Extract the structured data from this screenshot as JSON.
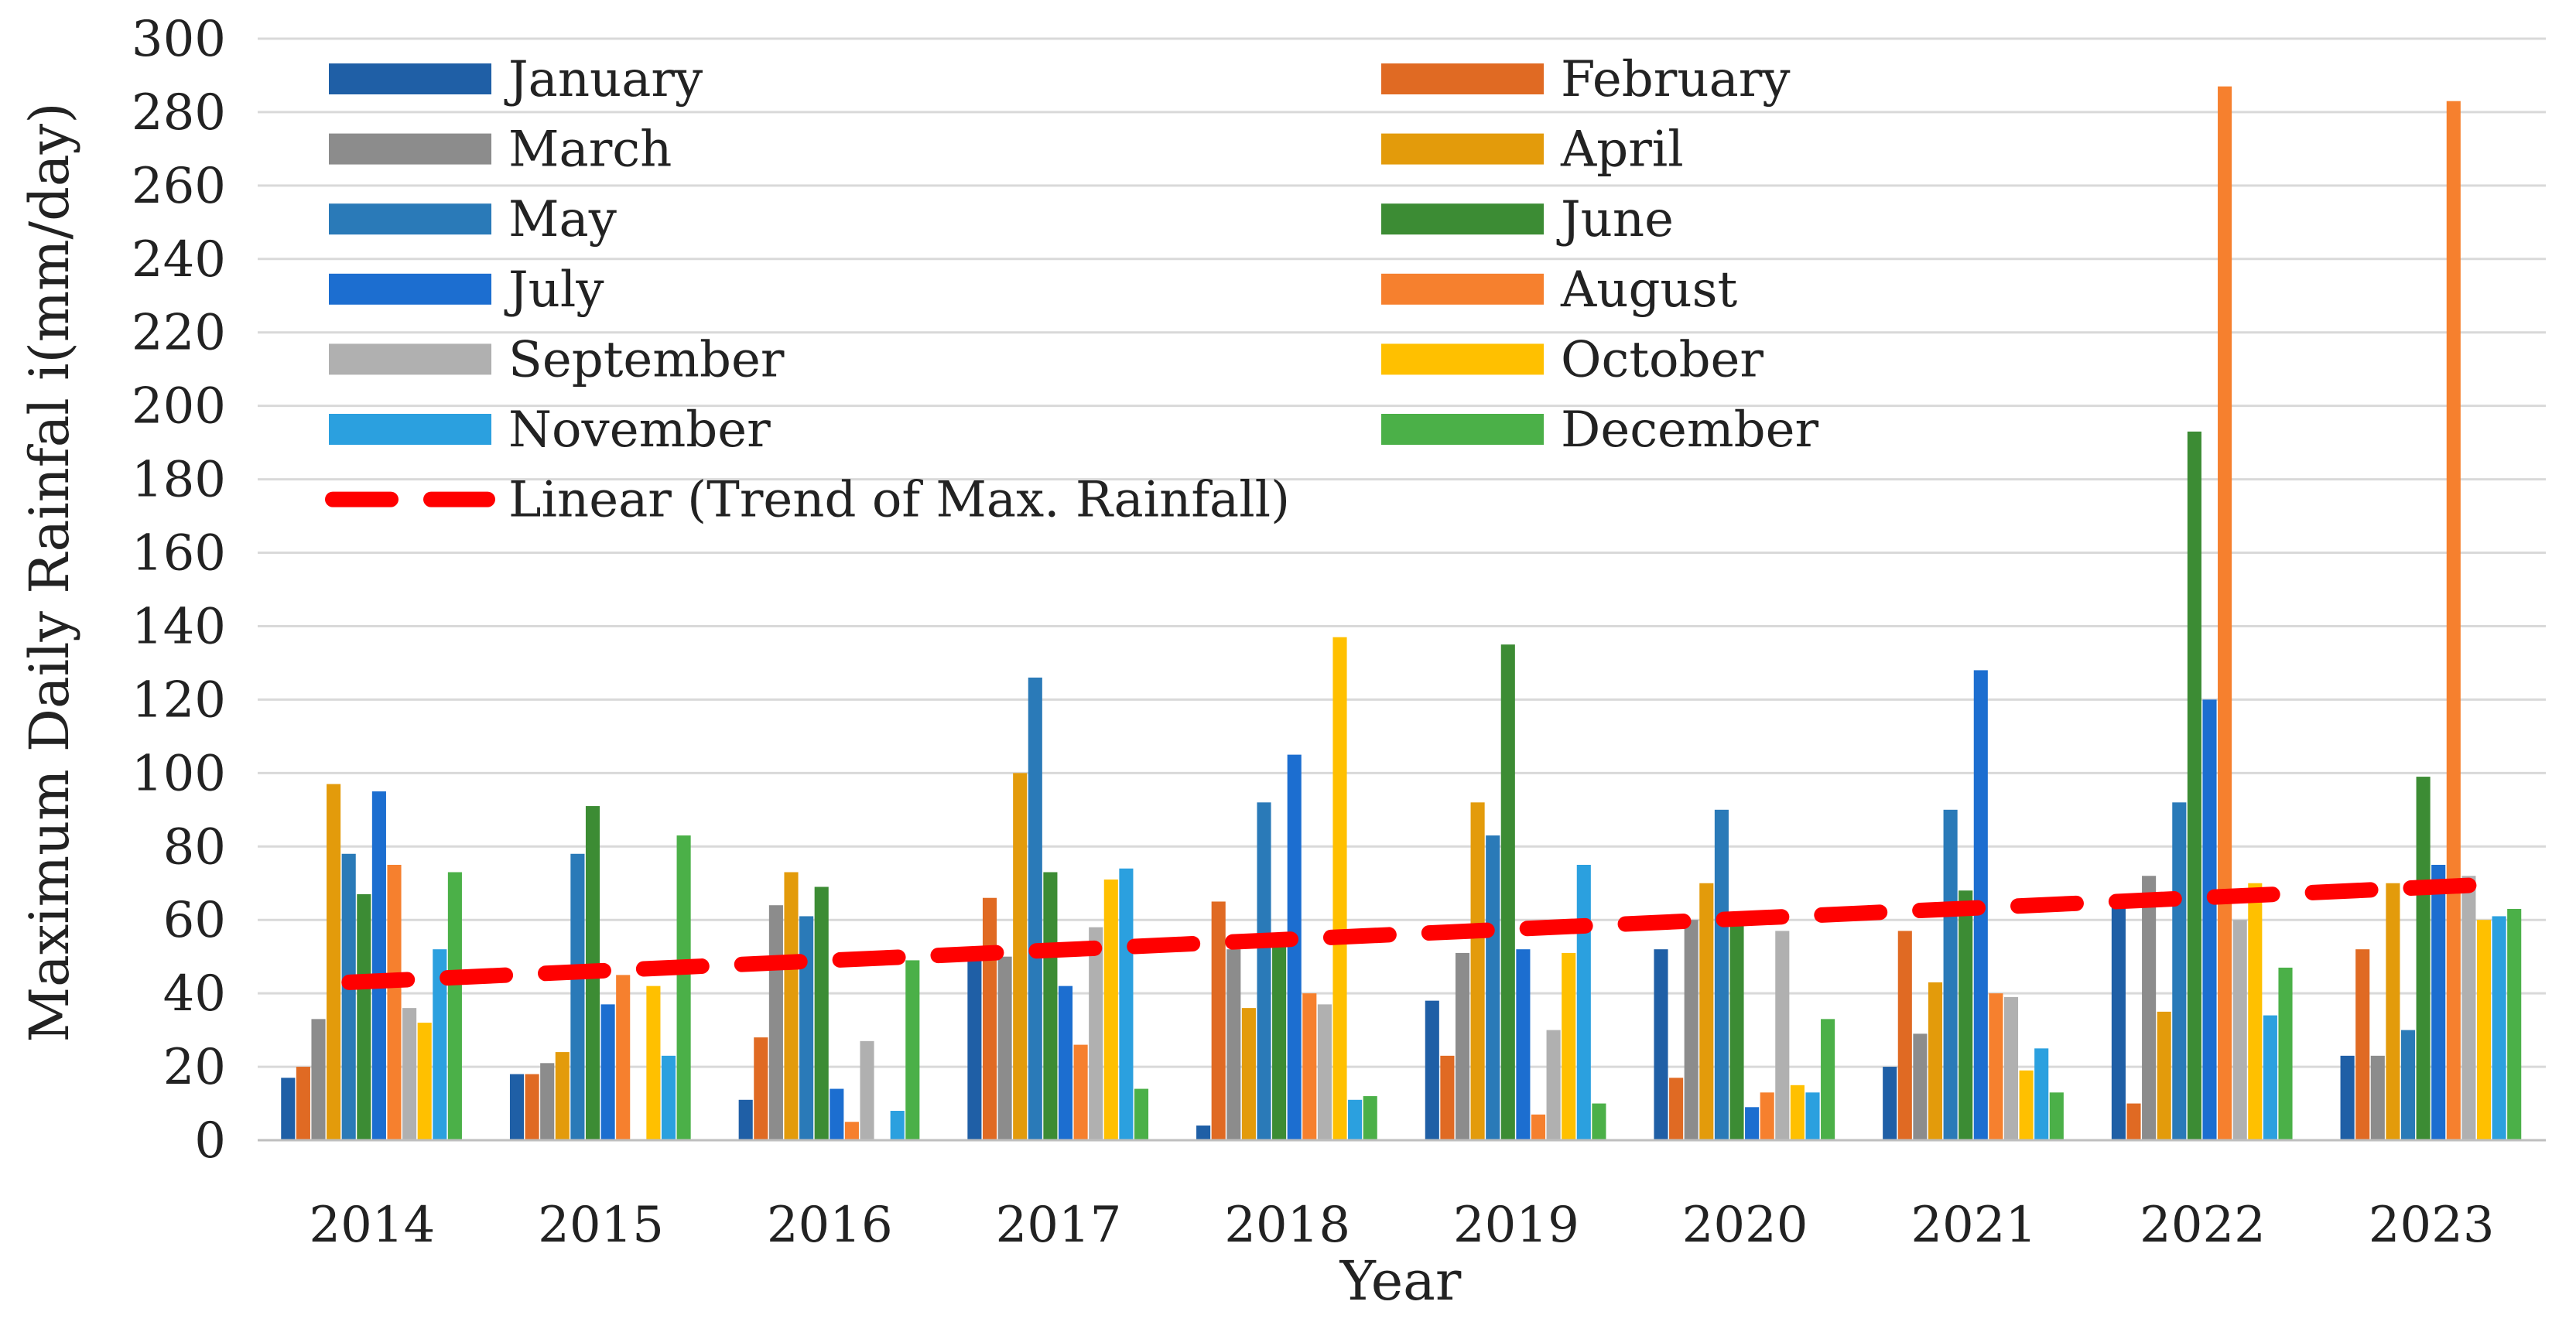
{
  "chart_data": {
    "type": "bar",
    "title": "",
    "xlabel": "Year",
    "ylabel": "Maximum Daily Rainfal i(mm/day)",
    "ylim": [
      0,
      300
    ],
    "yticks": [
      0,
      20,
      40,
      60,
      80,
      100,
      120,
      140,
      160,
      180,
      200,
      220,
      240,
      260,
      280,
      300
    ],
    "grid": true,
    "legend_position": "top (inside plot, two columns)",
    "categories": [
      "2014",
      "2015",
      "2016",
      "2017",
      "2018",
      "2019",
      "2020",
      "2021",
      "2022",
      "2023"
    ],
    "series": [
      {
        "name": "January",
        "color": "#1f5fa6",
        "values": [
          17,
          18,
          11,
          49,
          4,
          38,
          52,
          20,
          65,
          23
        ]
      },
      {
        "name": "February",
        "color": "#e06a23",
        "values": [
          20,
          18,
          28,
          66,
          65,
          23,
          17,
          57,
          10,
          52
        ]
      },
      {
        "name": "March",
        "color": "#8c8c8c",
        "values": [
          33,
          21,
          64,
          50,
          52,
          51,
          60,
          29,
          72,
          23
        ]
      },
      {
        "name": "April",
        "color": "#e39b0b",
        "values": [
          97,
          24,
          73,
          100,
          36,
          92,
          70,
          43,
          35,
          70
        ]
      },
      {
        "name": "May",
        "color": "#2a7ab8",
        "values": [
          78,
          78,
          61,
          126,
          92,
          83,
          90,
          90,
          92,
          30
        ]
      },
      {
        "name": "June",
        "color": "#3c8c34",
        "values": [
          67,
          91,
          69,
          73,
          55,
          135,
          62,
          68,
          193,
          99
        ]
      },
      {
        "name": "July",
        "color": "#1c6ed0",
        "values": [
          95,
          37,
          14,
          42,
          105,
          52,
          9,
          128,
          120,
          75
        ]
      },
      {
        "name": "August",
        "color": "#f6802e",
        "values": [
          75,
          45,
          5,
          26,
          40,
          7,
          13,
          40,
          287,
          283
        ]
      },
      {
        "name": "September",
        "color": "#b0b0b0",
        "values": [
          36,
          0,
          27,
          58,
          37,
          30,
          57,
          39,
          60,
          72
        ]
      },
      {
        "name": "October",
        "color": "#ffc000",
        "values": [
          32,
          42,
          0,
          71,
          137,
          51,
          15,
          19,
          70,
          60
        ]
      },
      {
        "name": "November",
        "color": "#2ba0df",
        "values": [
          52,
          23,
          8,
          74,
          11,
          75,
          13,
          25,
          34,
          61
        ]
      },
      {
        "name": "December",
        "color": "#4bb048",
        "values": [
          73,
          83,
          49,
          14,
          12,
          10,
          33,
          13,
          47,
          63
        ]
      }
    ],
    "trend": {
      "name": "Linear (Trend of Max. Rainfall)",
      "color": "#ff0000",
      "start": 43,
      "end": 69.5
    }
  }
}
